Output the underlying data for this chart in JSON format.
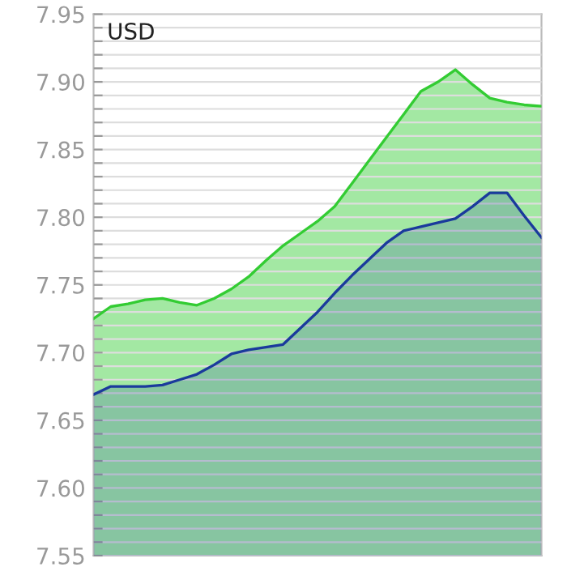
{
  "chart_data": {
    "type": "area",
    "annotations": [
      "USD"
    ],
    "categories": [
      null,
      null,
      null,
      null,
      null,
      null,
      null,
      null,
      null,
      null,
      null,
      null,
      null,
      null,
      null,
      null,
      null,
      null,
      null,
      null,
      null,
      null,
      null,
      null,
      null,
      null,
      null
    ],
    "series": [
      {
        "color": "#33cc33",
        "values": [
          7.725,
          7.734,
          7.736,
          7.739,
          7.74,
          7.737,
          7.735,
          7.74,
          7.747,
          7.756,
          7.768,
          7.779,
          7.788,
          7.797,
          7.808,
          7.825,
          7.842,
          7.859,
          7.876,
          7.893,
          7.9,
          7.909,
          7.898,
          7.888,
          7.885,
          7.883,
          7.882
        ]
      },
      {
        "color": "#1a3a9c",
        "values": [
          7.669,
          7.675,
          7.675,
          7.675,
          7.676,
          7.68,
          7.684,
          7.691,
          7.699,
          7.702,
          7.704,
          7.706,
          7.718,
          7.73,
          7.744,
          7.757,
          7.769,
          7.781,
          7.79,
          7.793,
          7.796,
          7.799,
          7.808,
          7.818,
          7.818,
          7.801,
          7.785
        ]
      }
    ],
    "ylim": [
      7.55,
      7.95
    ],
    "yticks": [
      7.55,
      {
        "value": 7.56,
        "label": null
      },
      {
        "value": 7.57,
        "label": null
      },
      {
        "value": 7.58,
        "label": null
      },
      {
        "value": 7.59,
        "label": null
      },
      {
        "value": 7.6,
        "label": "7.60"
      },
      {
        "value": 7.61,
        "label": null
      },
      {
        "value": 7.62,
        "label": null
      },
      {
        "value": 7.63,
        "label": null
      },
      {
        "value": 7.64,
        "label": null
      },
      7.65,
      {
        "value": 7.66,
        "label": null
      },
      {
        "value": 7.67,
        "label": null
      },
      {
        "value": 7.68,
        "label": null
      },
      {
        "value": 7.69,
        "label": null
      },
      {
        "value": 7.7,
        "label": "7.70"
      },
      {
        "value": 7.71,
        "label": null
      },
      {
        "value": 7.72,
        "label": null
      },
      {
        "value": 7.73,
        "label": null
      },
      {
        "value": 7.74,
        "label": null
      },
      7.75,
      {
        "value": 7.76,
        "label": null
      },
      {
        "value": 7.77,
        "label": null
      },
      {
        "value": 7.78,
        "label": null
      },
      {
        "value": 7.79,
        "label": null
      },
      {
        "value": 7.8,
        "label": "7.80"
      },
      {
        "value": 7.81,
        "label": null
      },
      {
        "value": 7.82,
        "label": null
      },
      {
        "value": 7.83,
        "label": null
      },
      {
        "value": 7.84,
        "label": null
      },
      7.85,
      {
        "value": 7.86,
        "label": null
      },
      {
        "value": 7.87,
        "label": null
      },
      {
        "value": 7.88,
        "label": null
      },
      {
        "value": 7.89,
        "label": null
      },
      {
        "value": 7.9,
        "label": "7.90"
      },
      {
        "value": 7.91,
        "label": null
      },
      {
        "value": 7.92,
        "label": null
      },
      {
        "value": 7.93,
        "label": null
      },
      {
        "value": 7.94,
        "label": null
      },
      7.95
    ],
    "grid": "y",
    "legend": false
  }
}
